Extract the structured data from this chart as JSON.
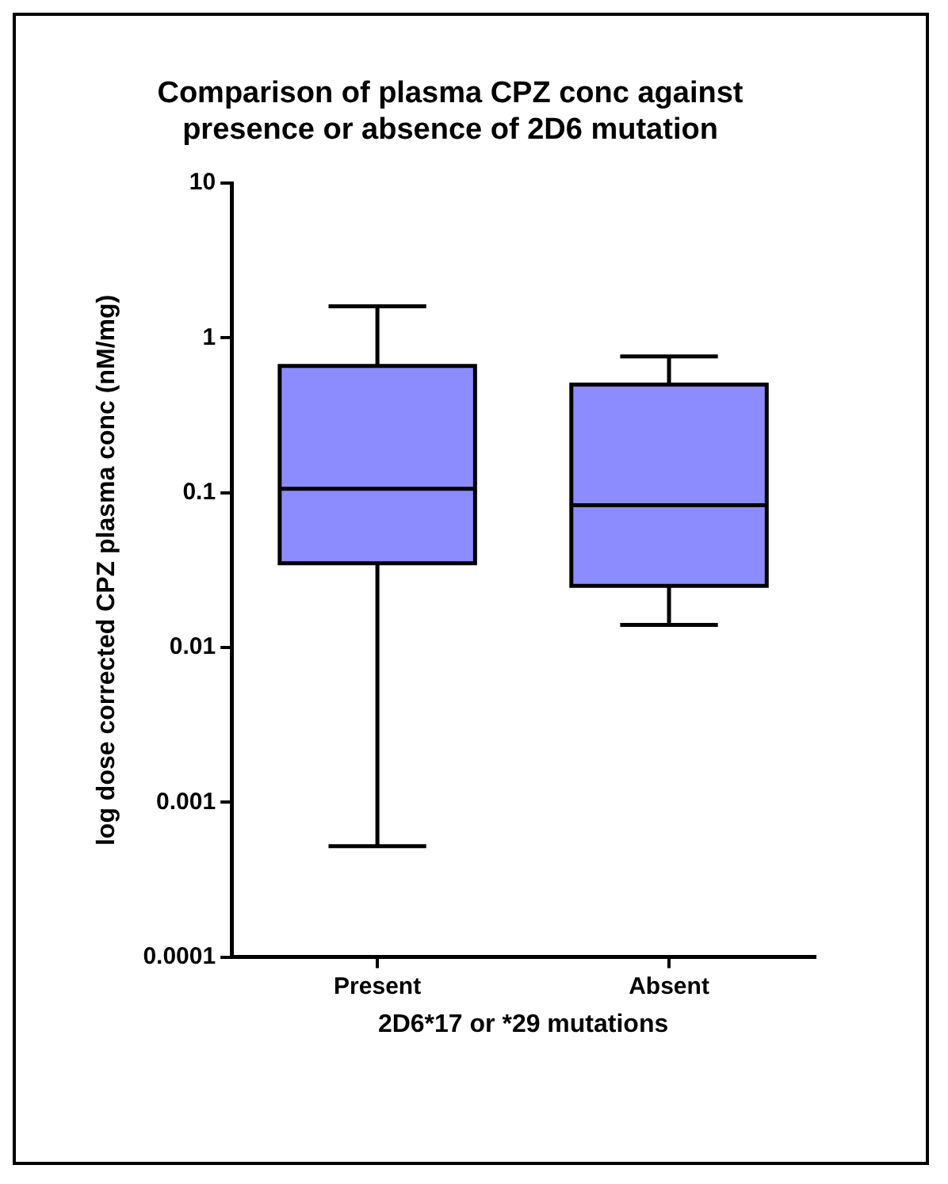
{
  "chart_data": {
    "type": "box",
    "title": "Comparison of plasma CPZ conc against presence or absence of 2D6 mutation",
    "xlabel": "2D6*17 or *29 mutations",
    "ylabel": "log dose corrected CPZ plasma conc (nM/mg)",
    "categories": [
      "Present",
      "Absent"
    ],
    "color": "#8c8cff",
    "boxes": [
      {
        "low": 0.00052,
        "q1": 0.035,
        "median": 0.106,
        "q3": 0.66,
        "high": 1.6
      },
      {
        "low": 0.014,
        "q1": 0.025,
        "median": 0.083,
        "q3": 0.5,
        "high": 0.76
      }
    ],
    "log": "y",
    "ylim": [
      0.0001,
      10
    ],
    "yticks": [
      0.0001,
      0.001,
      0.01,
      0.1,
      1,
      10
    ],
    "grid": false,
    "legend": false
  }
}
